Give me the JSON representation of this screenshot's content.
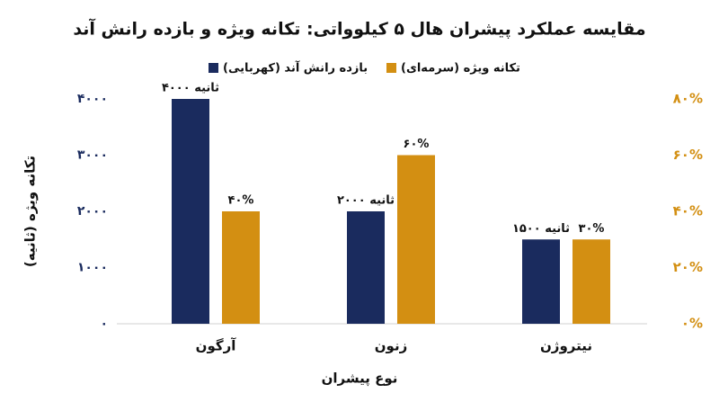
{
  "chart_data": {
    "type": "bar",
    "title": "مقایسه عملکرد پیشران هال ۵ کیلوواتی: تکانه ویژه و بازده رانش آند",
    "x_label": "نوع پیشران",
    "y_label": "تکانه ویژه (ثانیه)",
    "categories": [
      "آرگون",
      "زنون",
      "نیتروژن"
    ],
    "series": [
      {
        "name": "بازده رانش آند (کهربایی)",
        "color": "#1a2b5e",
        "values": [
          4000,
          2000,
          1500
        ],
        "value_labels": [
          "۴۰۰۰ ثانیه",
          "۲۰۰۰ ثانیه",
          "۱۵۰۰ ثانیه"
        ]
      },
      {
        "name": "تکانه ویژه (سرمه‌ای)",
        "color": "#d38f12",
        "axis": "y2",
        "values": [
          40,
          60,
          30
        ],
        "value_labels": [
          "۴۰%",
          "۶۰%",
          "۳۰%"
        ]
      }
    ],
    "ylim": [
      0,
      4000
    ],
    "yticks": [
      {
        "value": 0,
        "label": "۰"
      },
      {
        "value": 1000,
        "label": "۱۰۰۰"
      },
      {
        "value": 2000,
        "label": "۲۰۰۰"
      },
      {
        "value": 3000,
        "label": "۳۰۰۰"
      },
      {
        "value": 4000,
        "label": "۴۰۰۰"
      }
    ],
    "y2lim": [
      0,
      80
    ],
    "y2ticks": [
      {
        "value": 0,
        "label": "۰%"
      },
      {
        "value": 20,
        "label": "۲۰%"
      },
      {
        "value": 40,
        "label": "۴۰%"
      },
      {
        "value": 60,
        "label": "۶۰%"
      },
      {
        "value": 80,
        "label": "۸۰%"
      }
    ],
    "grid": false
  }
}
